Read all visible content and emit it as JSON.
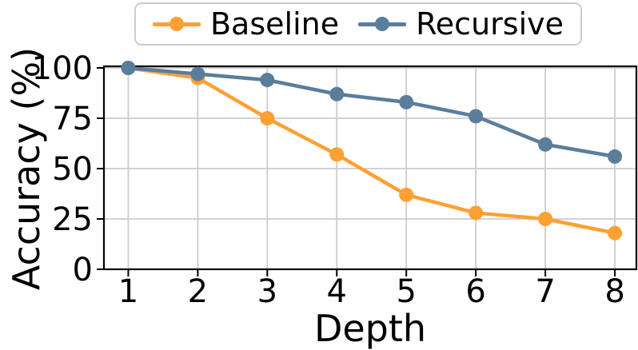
{
  "figure": {
    "background": "#ffffff"
  },
  "axes": {
    "xlabel": "Depth",
    "ylabel": "Accuracy (%)"
  },
  "legend": {
    "items": [
      {
        "name": "baseline",
        "label": "Baseline",
        "color": "#FFA033"
      },
      {
        "name": "recursive",
        "label": "Recursive",
        "color": "#5A7D9C"
      }
    ],
    "border_color": "#cccccc",
    "position": "top-center-outside"
  },
  "chart_data": {
    "type": "line",
    "x": [
      1,
      2,
      3,
      4,
      5,
      6,
      7,
      8
    ],
    "xticks": [
      "1",
      "2",
      "3",
      "4",
      "5",
      "6",
      "7",
      "8"
    ],
    "yticks": [
      0,
      25,
      50,
      75,
      100
    ],
    "xlabel": "Depth",
    "ylabel": "Accuracy (%)",
    "xlim": [
      0.65,
      8.31
    ],
    "ylim": [
      0,
      100
    ],
    "grid": true,
    "grid_color": "#cccccc",
    "spine_color": "#000000",
    "marker": "circle",
    "legend_position": "upper center, above plot",
    "series": [
      {
        "name": "Baseline",
        "color": "#FFA033",
        "values": [
          100,
          95,
          75,
          57,
          37,
          28,
          25,
          18
        ]
      },
      {
        "name": "Recursive",
        "color": "#5A7D9C",
        "values": [
          100,
          97,
          94,
          87,
          83,
          76,
          62,
          56
        ]
      }
    ]
  }
}
